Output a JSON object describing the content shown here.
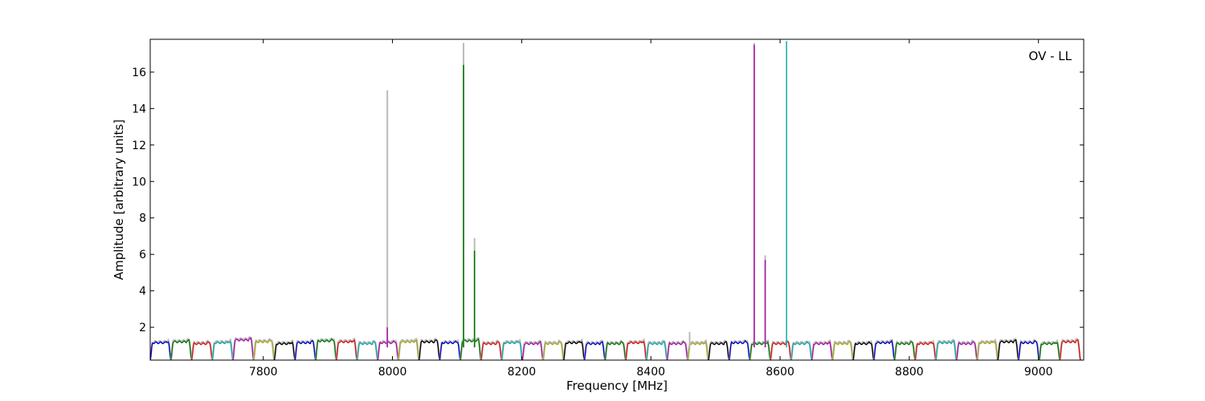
{
  "chart_data": {
    "type": "line",
    "title": "",
    "annotation": "OV - LL",
    "xlabel": "Frequency [MHz]",
    "ylabel": "Amplitude [arbitrary units]",
    "xlim": [
      7625,
      9070
    ],
    "ylim": [
      0.2,
      17.8
    ],
    "xticks": [
      7800,
      8000,
      8200,
      8400,
      8600,
      8800,
      9000
    ],
    "yticks": [
      2,
      4,
      6,
      8,
      10,
      12,
      14,
      16
    ],
    "grid": false,
    "legend": "none",
    "channel_width_mhz": 32,
    "first_channel_start_mhz": 7625,
    "channel_count": 45,
    "channel_levels": [
      1.15,
      1.2,
      1.1,
      1.15,
      1.3,
      1.2,
      1.1,
      1.15,
      1.25,
      1.2,
      1.1,
      1.15,
      1.2,
      1.2,
      1.15,
      1.25,
      1.1,
      1.15,
      1.1,
      1.1,
      1.15,
      1.1,
      1.1,
      1.15,
      1.1,
      1.1,
      1.1,
      1.1,
      1.15,
      1.1,
      1.1,
      1.1,
      1.1,
      1.1,
      1.1,
      1.15,
      1.1,
      1.1,
      1.15,
      1.1,
      1.15,
      1.2,
      1.15,
      1.1,
      1.2
    ],
    "palette": [
      "#0000cc",
      "#007700",
      "#dd1111",
      "#11aaaa",
      "#aa11aa",
      "#aaaa22",
      "#000000"
    ],
    "background_series_color": "#bbbbbb",
    "spikes": [
      {
        "x": 7992,
        "y": 15.0,
        "color": "#bbbbbb"
      },
      {
        "x": 7992,
        "y": 2.0,
        "color": "#aa11aa"
      },
      {
        "x": 8110,
        "y": 17.6,
        "color": "#bbbbbb"
      },
      {
        "x": 8110,
        "y": 16.4,
        "color": "#007700"
      },
      {
        "x": 8127,
        "y": 6.9,
        "color": "#bbbbbb"
      },
      {
        "x": 8127,
        "y": 6.2,
        "color": "#007700"
      },
      {
        "x": 8460,
        "y": 1.75,
        "color": "#bbbbbb"
      },
      {
        "x": 8560,
        "y": 17.6,
        "color": "#bbbbbb"
      },
      {
        "x": 8560,
        "y": 17.5,
        "color": "#aa11aa"
      },
      {
        "x": 8577,
        "y": 5.95,
        "color": "#bbbbbb"
      },
      {
        "x": 8577,
        "y": 5.7,
        "color": "#aa11aa"
      },
      {
        "x": 8610,
        "y": 17.7,
        "color": "#11aaaa"
      }
    ]
  }
}
